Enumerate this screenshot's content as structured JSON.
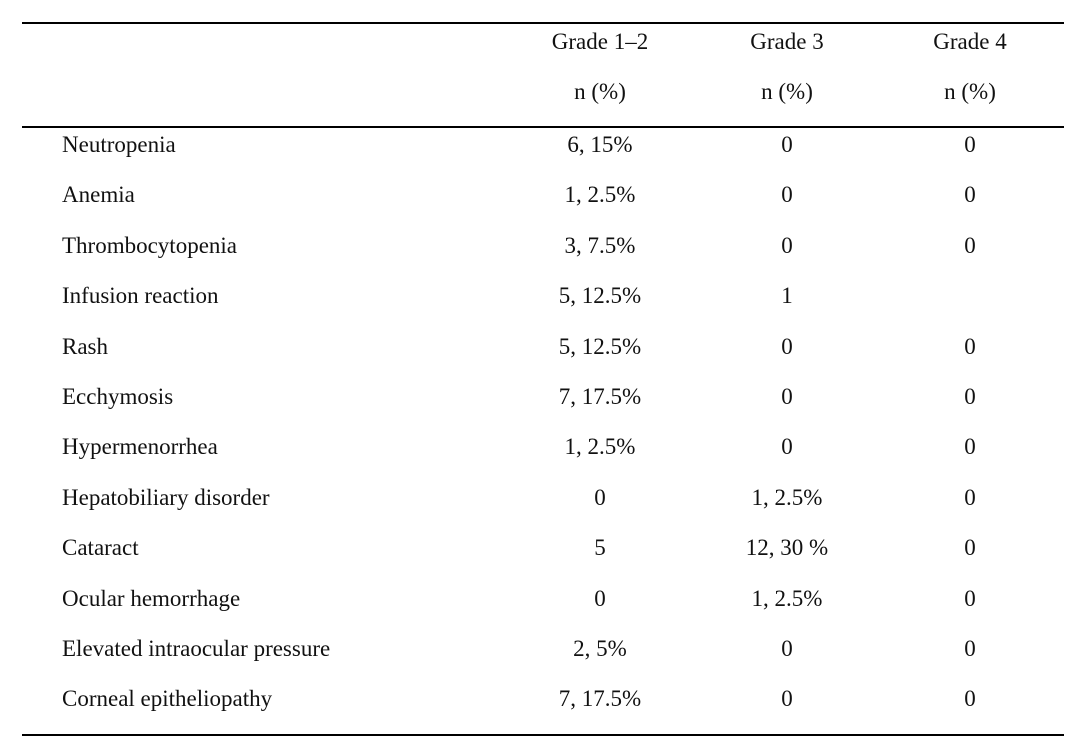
{
  "table": {
    "header_row1": [
      "Grade 1–2",
      "Grade 3",
      "Grade 4"
    ],
    "header_row2": [
      "n (%)",
      "n (%)",
      "n (%)"
    ],
    "rows": [
      {
        "label": "Neutropenia",
        "g12": "6, 15%",
        "g3": "0",
        "g4": "0"
      },
      {
        "label": "Anemia",
        "g12": "1, 2.5%",
        "g3": "0",
        "g4": "0"
      },
      {
        "label": "Thrombocytopenia",
        "g12": "3, 7.5%",
        "g3": "0",
        "g4": "0"
      },
      {
        "label": "Infusion reaction",
        "g12": "5, 12.5%",
        "g3": "1",
        "g4": ""
      },
      {
        "label": "Rash",
        "g12": "5, 12.5%",
        "g3": "0",
        "g4": "0"
      },
      {
        "label": "Ecchymosis",
        "g12": "7, 17.5%",
        "g3": "0",
        "g4": "0"
      },
      {
        "label": "Hypermenorrhea",
        "g12": "1, 2.5%",
        "g3": "0",
        "g4": "0"
      },
      {
        "label": "Hepatobiliary disorder",
        "g12": "0",
        "g3": "1, 2.5%",
        "g4": "0"
      },
      {
        "label": "Cataract",
        "g12": "5",
        "g3": "12, 30 %",
        "g4": "0"
      },
      {
        "label": "Ocular hemorrhage",
        "g12": "0",
        "g3": "1, 2.5%",
        "g4": "0"
      },
      {
        "label": "Elevated intraocular pressure",
        "g12": "2, 5%",
        "g3": "0",
        "g4": "0"
      },
      {
        "label": "Corneal epitheliopathy",
        "g12": "7, 17.5%",
        "g3": "0",
        "g4": "0"
      }
    ]
  }
}
